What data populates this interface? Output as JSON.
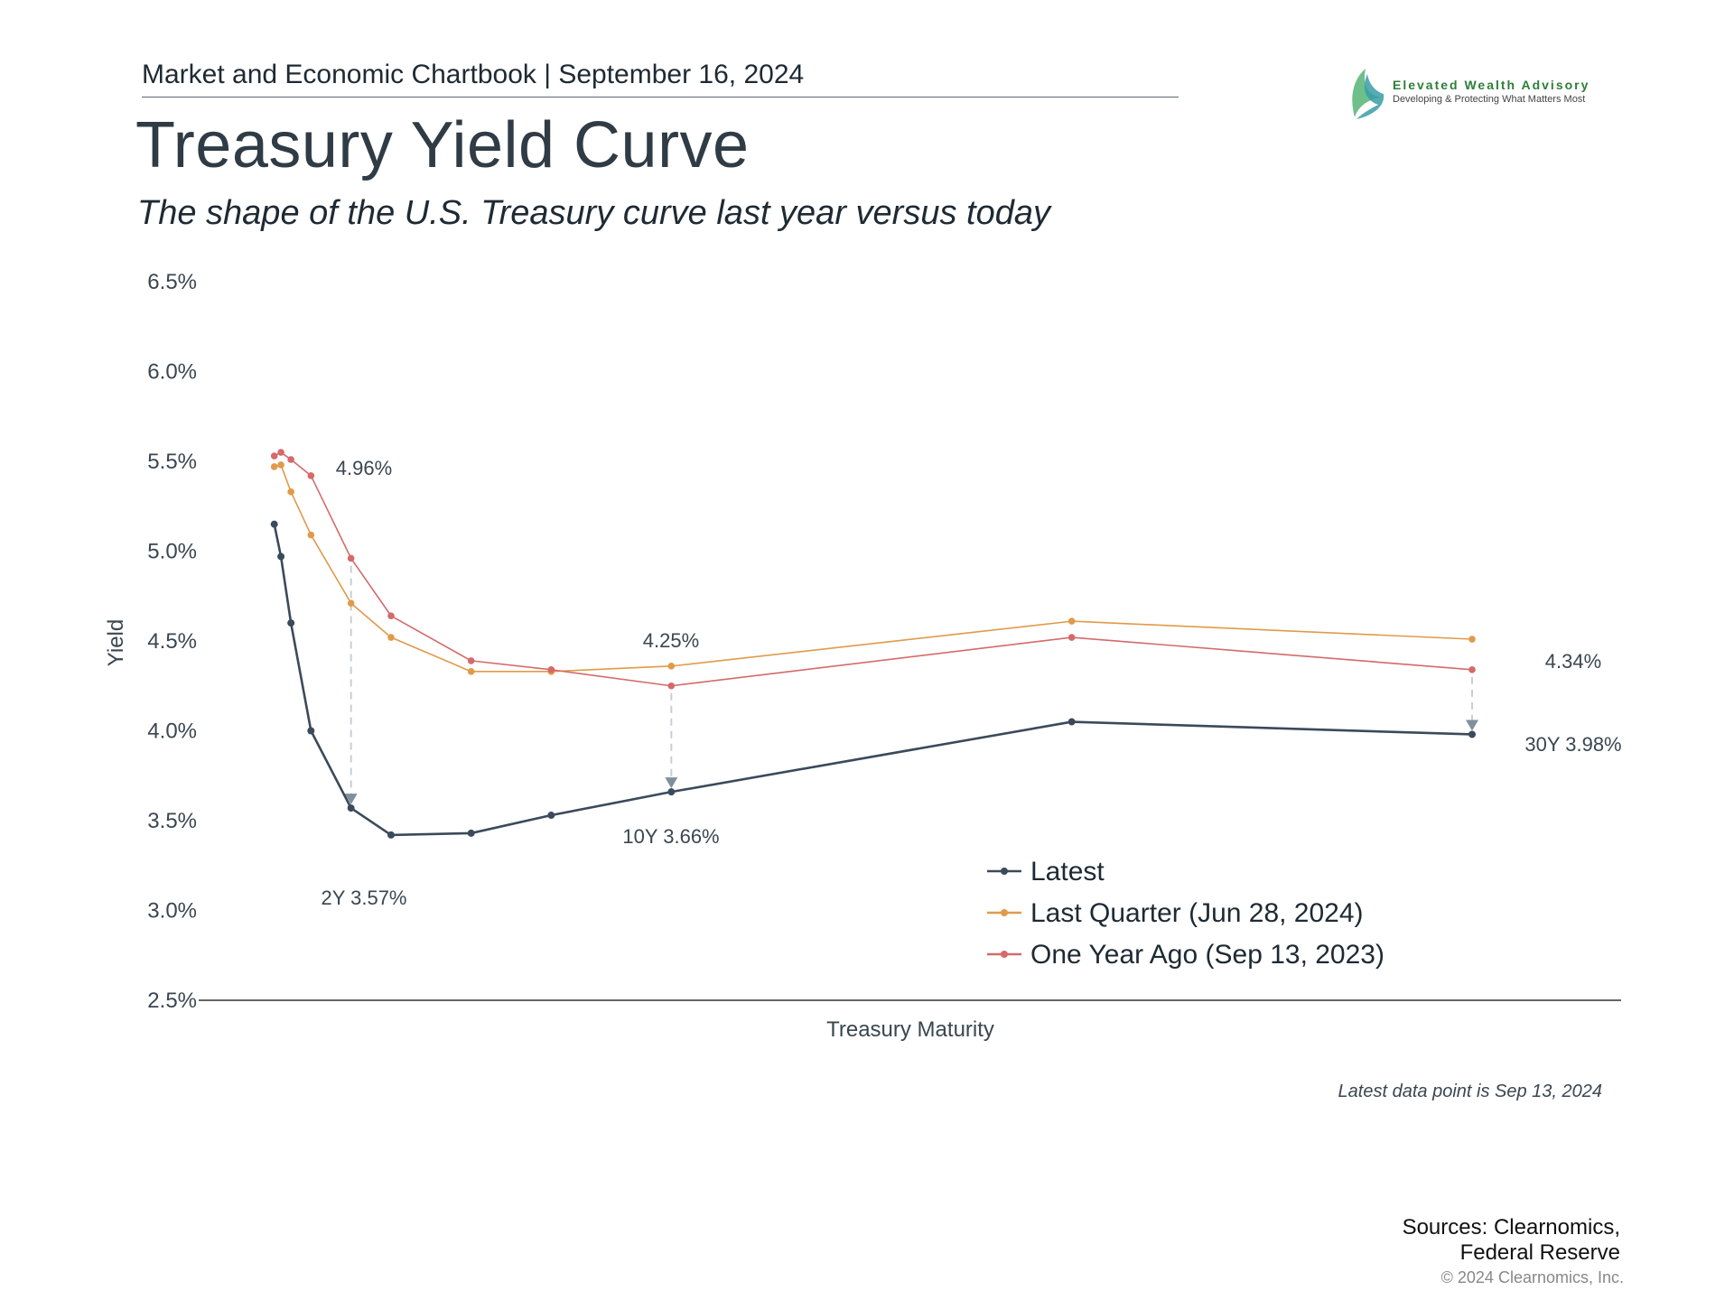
{
  "header": {
    "chartbook_line": "Market and Economic Chartbook | September 16, 2024",
    "title": "Treasury Yield Curve",
    "subtitle": "The shape of the U.S. Treasury curve last year versus today"
  },
  "logo": {
    "name": "Elevated Wealth Advisory",
    "tagline": "Developing & Protecting What Matters Most"
  },
  "footer": {
    "note": "Latest data point is Sep 13, 2024",
    "sources_line1": "Sources: Clearnomics,",
    "sources_line2": "Federal Reserve",
    "copyright": "© 2024 Clearnomics, Inc."
  },
  "colors": {
    "latest": "#3a4a5a",
    "last_quarter": "#e09a4a",
    "one_year_ago": "#d46a6a",
    "arrow": "#7f8f9c",
    "axis": "#333333"
  },
  "chart_data": {
    "type": "line",
    "title": "Treasury Yield Curve",
    "xlabel": "Treasury Maturity",
    "ylabel": "Yield",
    "ylim": [
      2.5,
      6.5
    ],
    "yticks": [
      2.5,
      3.0,
      3.5,
      4.0,
      4.5,
      5.0,
      5.5,
      6.0,
      6.5
    ],
    "ytick_labels": [
      "2.5%",
      "3.0%",
      "3.5%",
      "4.0%",
      "4.5%",
      "5.0%",
      "5.5%",
      "6.0%",
      "6.5%"
    ],
    "x_years": [
      0.0833,
      0.25,
      0.5,
      1,
      2,
      3,
      5,
      7,
      10,
      20,
      30
    ],
    "grid": false,
    "legend_position": "bottom-center",
    "series": [
      {
        "name": "Latest",
        "color_key": "latest",
        "values": [
          5.15,
          4.97,
          4.6,
          4.0,
          3.57,
          3.42,
          3.43,
          3.53,
          3.66,
          4.05,
          3.98
        ]
      },
      {
        "name": "Last Quarter (Jun 28, 2024)",
        "color_key": "last_quarter",
        "values": [
          5.47,
          5.48,
          5.33,
          5.09,
          4.71,
          4.52,
          4.33,
          4.33,
          4.36,
          4.61,
          4.51
        ]
      },
      {
        "name": "One Year Ago (Sep 13, 2023)",
        "color_key": "one_year_ago",
        "values": [
          5.53,
          5.55,
          5.51,
          5.42,
          4.96,
          4.64,
          4.39,
          4.34,
          4.25,
          4.52,
          4.34
        ]
      }
    ],
    "annotations": [
      {
        "index": 4,
        "old_label": "4.96%",
        "new_label": "2Y 3.57%"
      },
      {
        "index": 8,
        "old_label": "4.25%",
        "new_label": "10Y 3.66%"
      },
      {
        "index": 10,
        "old_label": "4.34%",
        "new_label": "30Y 3.98%"
      }
    ]
  }
}
